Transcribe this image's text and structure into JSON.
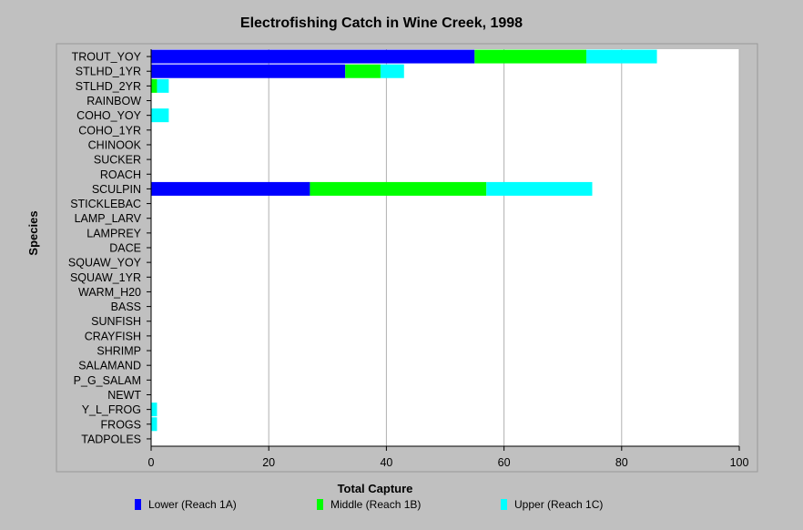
{
  "chart_data": {
    "type": "bar",
    "orientation": "horizontal",
    "stacked": true,
    "title": "Electrofishing Catch in Wine Creek, 1998",
    "xlabel": "Total Capture",
    "ylabel": "Species",
    "xlim": [
      0,
      100
    ],
    "xticks": [
      0,
      20,
      40,
      60,
      80,
      100
    ],
    "grid": true,
    "legend_position": "bottom",
    "categories": [
      "TROUT_YOY",
      "STLHD_1YR",
      "STLHD_2YR",
      "RAINBOW",
      "COHO_YOY",
      "COHO_1YR",
      "CHINOOK",
      "SUCKER",
      "ROACH",
      "SCULPIN",
      "STICKLEBAC",
      "LAMP_LARV",
      "LAMPREY",
      "DACE",
      "SQUAW_YOY",
      "SQUAW_1YR",
      "WARM_H20",
      "BASS",
      "SUNFISH",
      "CRAYFISH",
      "SHRIMP",
      "SALAMAND",
      "P_G_SALAM",
      "NEWT",
      "Y_L_FROG",
      "FROGS",
      "TADPOLES"
    ],
    "series": [
      {
        "name": "Lower (Reach 1A)",
        "color": "#0000ff",
        "values": [
          55,
          33,
          0,
          0,
          0,
          0,
          0,
          0,
          0,
          27,
          0,
          0,
          0,
          0,
          0,
          0,
          0,
          0,
          0,
          0,
          0,
          0,
          0,
          0,
          0,
          0,
          0
        ]
      },
      {
        "name": "Middle (Reach 1B)",
        "color": "#00ff00",
        "values": [
          19,
          6,
          1,
          0,
          0,
          0,
          0,
          0,
          0,
          30,
          0,
          0,
          0,
          0,
          0,
          0,
          0,
          0,
          0,
          0,
          0,
          0,
          0,
          0,
          0,
          0,
          0
        ]
      },
      {
        "name": "Upper (Reach 1C)",
        "color": "#00ffff",
        "values": [
          12,
          4,
          2,
          0,
          3,
          0,
          0,
          0,
          0,
          18,
          0,
          0,
          0,
          0,
          0,
          0,
          0,
          0,
          0,
          0,
          0,
          0,
          0,
          0,
          1,
          1,
          0
        ]
      }
    ]
  }
}
